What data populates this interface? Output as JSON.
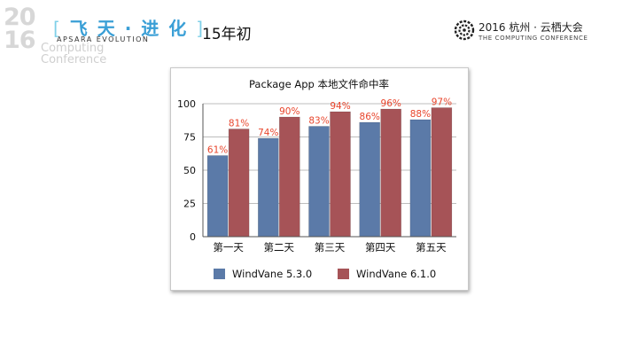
{
  "branding": {
    "year_top": "20",
    "year_bottom": "16",
    "slogan": "飞 天 · 进 化",
    "bracket_open": "[",
    "bracket_close": "]",
    "evolution": "APSARA EVOLUTION",
    "computing_line1": "Computing",
    "computing_line2": "Conference",
    "right_title": "2016 杭州 · 云栖大会",
    "right_subtitle": "THE COMPUTING CONFERENCE",
    "colors": {
      "accent_blue": "#3a9fd6",
      "accent_light": "#7fd0e8"
    }
  },
  "slide": {
    "title": "15年初"
  },
  "chart_data": {
    "type": "bar",
    "title": "Package App 本地文件命中率",
    "categories": [
      "第一天",
      "第二天",
      "第三天",
      "第四天",
      "第五天"
    ],
    "series": [
      {
        "name": "WindVane 5.3.0",
        "values": [
          61,
          74,
          83,
          86,
          88
        ],
        "color": "#5b7aa8"
      },
      {
        "name": "WindVane 6.1.0",
        "values": [
          81,
          90,
          94,
          96,
          97
        ],
        "color": "#a65357"
      }
    ],
    "data_labels": [
      [
        "61%",
        "74%",
        "83%",
        "86%",
        "88%"
      ],
      [
        "81%",
        "90%",
        "94%",
        "96%",
        "97%"
      ]
    ],
    "ylim": [
      0,
      100
    ],
    "yticks": [
      "0",
      "25",
      "50",
      "75",
      "100"
    ],
    "ytick_values": [
      0,
      25,
      50,
      75,
      100
    ],
    "grid": true,
    "legend_position": "bottom",
    "label_color": "#e8452c"
  }
}
